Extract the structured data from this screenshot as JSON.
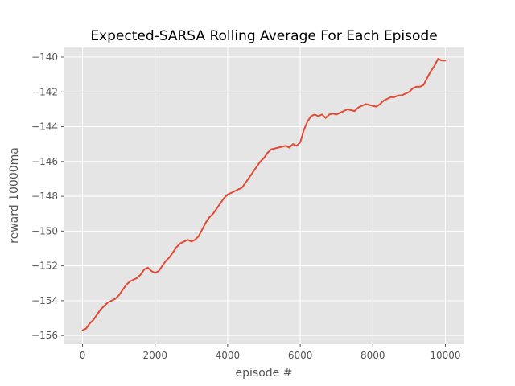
{
  "chart_data": {
    "type": "line",
    "title": "Expected-SARSA Rolling Average For Each Episode",
    "xlabel": "episode #",
    "ylabel": "reward 10000ma",
    "xlim": [
      -500,
      10500
    ],
    "ylim": [
      -156.5,
      -139.4
    ],
    "xticks": [
      0,
      2000,
      4000,
      6000,
      8000,
      10000
    ],
    "xtick_labels": [
      "0",
      "2000",
      "4000",
      "6000",
      "8000",
      "10000"
    ],
    "yticks": [
      -156,
      -154,
      -152,
      -150,
      -148,
      -146,
      -144,
      -142,
      -140
    ],
    "ytick_labels": [
      "−156",
      "−154",
      "−152",
      "−150",
      "−148",
      "−146",
      "−144",
      "−142",
      "−140"
    ],
    "grid": true,
    "legend": "none",
    "style": {
      "background": "#e5e5e5",
      "grid_color": "#ffffff",
      "line_color": "#e24a33"
    },
    "series": [
      {
        "x": [
          0,
          100,
          200,
          300,
          400,
          500,
          600,
          700,
          800,
          900,
          1000,
          1100,
          1200,
          1300,
          1400,
          1500,
          1600,
          1700,
          1800,
          1900,
          2000,
          2100,
          2200,
          2300,
          2400,
          2500,
          2600,
          2700,
          2800,
          2900,
          3000,
          3100,
          3200,
          3300,
          3400,
          3500,
          3600,
          3700,
          3800,
          3900,
          4000,
          4100,
          4200,
          4300,
          4400,
          4500,
          4600,
          4700,
          4800,
          4900,
          5000,
          5100,
          5200,
          5300,
          5400,
          5500,
          5600,
          5700,
          5800,
          5900,
          6000,
          6100,
          6200,
          6300,
          6400,
          6500,
          6600,
          6700,
          6800,
          6900,
          7000,
          7100,
          7200,
          7300,
          7400,
          7500,
          7600,
          7700,
          7800,
          7900,
          8000,
          8100,
          8200,
          8300,
          8400,
          8500,
          8600,
          8700,
          8800,
          8900,
          9000,
          9100,
          9200,
          9300,
          9400,
          9500,
          9600,
          9700,
          9800,
          9900,
          10000
        ],
        "y": [
          -155.7,
          -155.6,
          -155.3,
          -155.1,
          -154.8,
          -154.5,
          -154.3,
          -154.1,
          -154.0,
          -153.9,
          -153.7,
          -153.4,
          -153.1,
          -152.9,
          -152.8,
          -152.7,
          -152.5,
          -152.2,
          -152.1,
          -152.3,
          -152.4,
          -152.3,
          -152.0,
          -151.7,
          -151.5,
          -151.2,
          -150.9,
          -150.7,
          -150.6,
          -150.5,
          -150.6,
          -150.5,
          -150.3,
          -149.9,
          -149.5,
          -149.2,
          -149.0,
          -148.7,
          -148.4,
          -148.1,
          -147.9,
          -147.8,
          -147.7,
          -147.6,
          -147.5,
          -147.2,
          -146.9,
          -146.6,
          -146.3,
          -146.0,
          -145.8,
          -145.5,
          -145.3,
          -145.25,
          -145.2,
          -145.15,
          -145.1,
          -145.2,
          -145.0,
          -145.1,
          -144.9,
          -144.2,
          -143.7,
          -143.4,
          -143.3,
          -143.4,
          -143.3,
          -143.5,
          -143.3,
          -143.25,
          -143.3,
          -143.2,
          -143.1,
          -143.0,
          -143.05,
          -143.1,
          -142.9,
          -142.8,
          -142.7,
          -142.75,
          -142.8,
          -142.85,
          -142.7,
          -142.5,
          -142.4,
          -142.3,
          -142.3,
          -142.2,
          -142.2,
          -142.1,
          -142.0,
          -141.8,
          -141.7,
          -141.7,
          -141.6,
          -141.2,
          -140.8,
          -140.5,
          -140.1,
          -140.2,
          -140.2
        ]
      }
    ]
  }
}
